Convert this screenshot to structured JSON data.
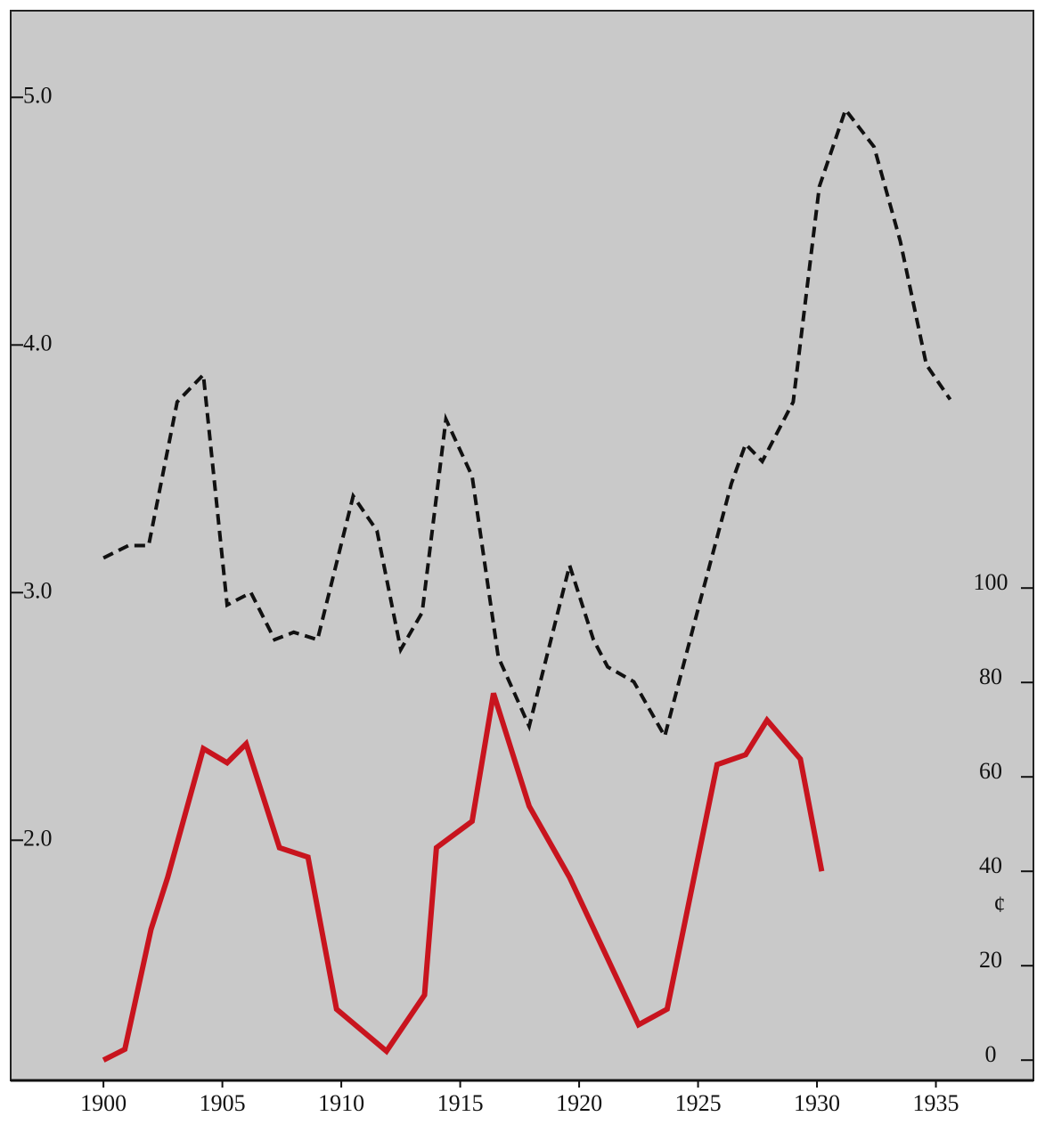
{
  "chart_data": {
    "type": "line",
    "xlim": [
      1896.1,
      1939.1
    ],
    "xticks": [
      1900,
      1905,
      1910,
      1915,
      1920,
      1925,
      1930,
      1935
    ],
    "ylim": [
      1.03,
      5.35
    ],
    "yticks": [
      {
        "value": 2,
        "label": "2.0"
      },
      {
        "value": 3,
        "label": "3.0"
      },
      {
        "value": 4,
        "label": "4.0"
      },
      {
        "value": 5,
        "label": "5.0"
      }
    ],
    "y2lim": [
      -4.3,
      222.3
    ],
    "y2ticks": [
      0,
      20,
      40,
      60,
      80,
      100
    ],
    "y2label": "¢",
    "series": [
      {
        "color": "#111111",
        "dashed": true,
        "x": [
          1900.0,
          1901.05,
          1901.9,
          1903.1,
          1904.2,
          1905.2,
          1906.2,
          1907.2,
          1908.0,
          1909.0,
          1910.5,
          1911.5,
          1912.5,
          1913.4,
          1914.4,
          1915.5,
          1916.6,
          1917.9,
          1919.6,
          1920.6,
          1921.2,
          1922.3,
          1923.6,
          1925.1,
          1926.4,
          1927.0,
          1927.7,
          1929.0,
          1930.1,
          1931.2,
          1932.4,
          1933.5,
          1934.6,
          1935.6
        ],
        "values": [
          3.14,
          3.19,
          3.19,
          3.77,
          3.88,
          2.95,
          3.0,
          2.81,
          2.84,
          2.81,
          3.39,
          3.25,
          2.77,
          2.92,
          3.7,
          3.47,
          2.74,
          2.46,
          3.11,
          2.81,
          2.7,
          2.64,
          2.42,
          2.97,
          3.44,
          3.6,
          3.53,
          3.77,
          4.64,
          4.95,
          4.8,
          4.42,
          3.92,
          3.78
        ]
      },
      {
        "color": "#c8141e",
        "dashed": false,
        "axis": "y2",
        "x": [
          1900.0,
          1900.9,
          1902.0,
          1902.7,
          1904.2,
          1905.2,
          1906.0,
          1907.4,
          1908.6,
          1909.8,
          1911.9,
          1913.5,
          1914.0,
          1915.5,
          1916.4,
          1917.9,
          1919.6,
          1922.5,
          1923.7,
          1925.8,
          1927.0,
          1927.9,
          1929.3,
          1930.2
        ],
        "values": [
          0,
          2.3,
          27.7,
          38.7,
          66,
          63,
          67,
          45,
          43,
          10.8,
          1.9,
          13.8,
          45,
          50.6,
          77.7,
          53.8,
          38.7,
          7.5,
          10.8,
          62.6,
          64.7,
          72,
          63.8,
          40
        ]
      }
    ]
  }
}
